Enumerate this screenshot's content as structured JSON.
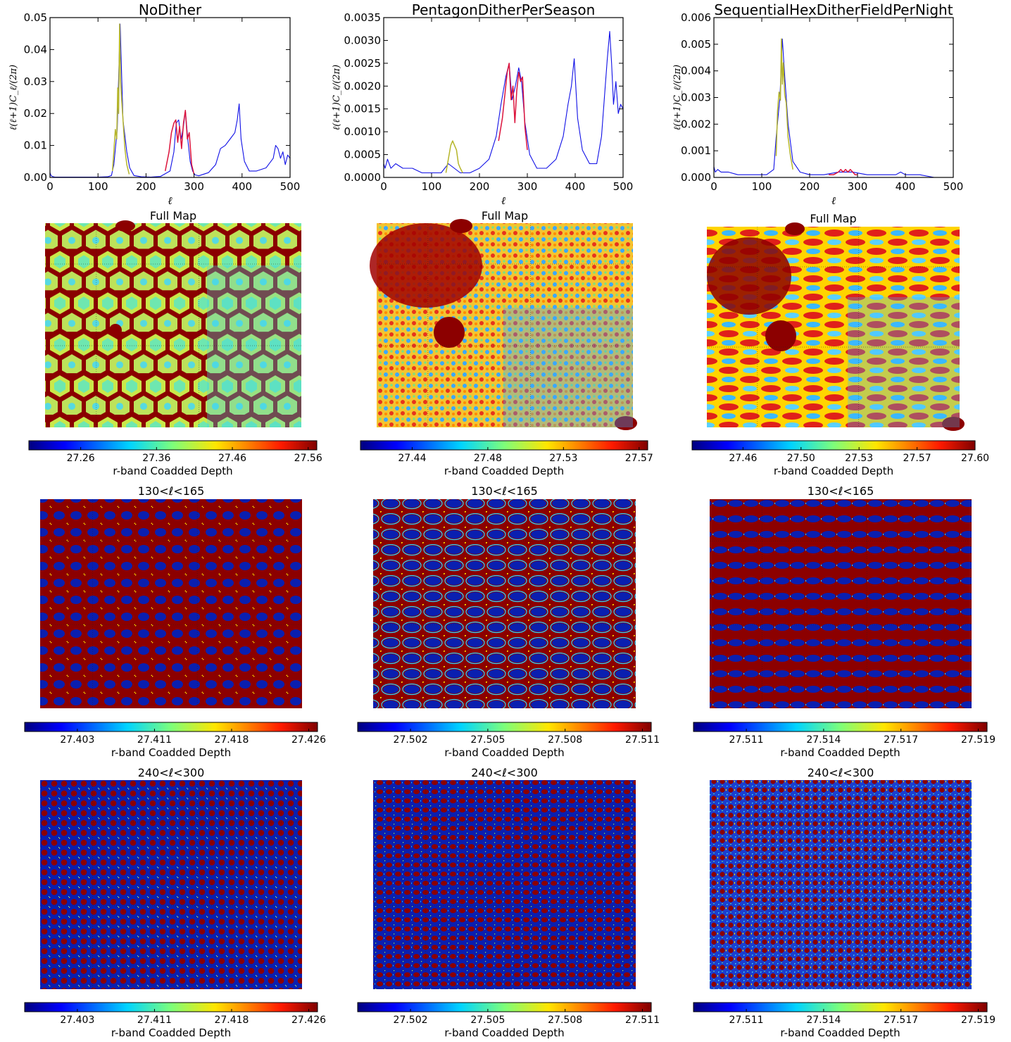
{
  "colors": {
    "low": "#0a1a8f",
    "high": "#960000",
    "blue_line": "#1010e6",
    "olive_line": "#b5b52a",
    "red_line": "#dc143c"
  },
  "chart_data": [
    {
      "type": "line",
      "title": "NoDither",
      "xlabel": "ℓ",
      "ylabel": "ℓ(ℓ+1)C_ℓ/(2π)",
      "xlim": [
        0,
        500
      ],
      "ylim": [
        0,
        0.05
      ],
      "xticks": [
        "0",
        "100",
        "200",
        "300",
        "400",
        "500"
      ],
      "yticks": [
        "0.00",
        "0.01",
        "0.02",
        "0.03",
        "0.04",
        "0.05"
      ],
      "series": [
        {
          "color": "blue_line",
          "x": [
            0,
            2,
            5,
            10,
            30,
            60,
            100,
            120,
            128,
            133,
            140,
            146,
            152,
            160,
            166,
            175,
            190,
            210,
            230,
            250,
            258,
            263,
            268,
            273,
            278,
            282,
            287,
            292,
            297,
            302,
            310,
            330,
            345,
            355,
            365,
            375,
            385,
            390,
            394,
            398,
            405,
            415,
            430,
            450,
            465,
            470,
            475,
            480,
            485,
            490,
            495,
            500
          ],
          "y": [
            0.0015,
            0.0006,
            0.0003,
            0.0001,
            0.0001,
            0.0001,
            0.0001,
            0.0002,
            0.0006,
            0.004,
            0.015,
            0.048,
            0.018,
            0.008,
            0.003,
            0.0006,
            0.0002,
            0.0001,
            0.0003,
            0.002,
            0.008,
            0.017,
            0.018,
            0.012,
            0.016,
            0.021,
            0.012,
            0.005,
            0.002,
            0.0008,
            0.0005,
            0.0015,
            0.004,
            0.009,
            0.01,
            0.012,
            0.014,
            0.018,
            0.023,
            0.012,
            0.005,
            0.002,
            0.002,
            0.003,
            0.006,
            0.01,
            0.009,
            0.006,
            0.008,
            0.004,
            0.007,
            0.006
          ]
        },
        {
          "color": "olive_line",
          "x": [
            130,
            133,
            136,
            139,
            141,
            143,
            145,
            147,
            149,
            152,
            156,
            160,
            165
          ],
          "y": [
            0.002,
            0.008,
            0.015,
            0.012,
            0.028,
            0.02,
            0.048,
            0.03,
            0.025,
            0.018,
            0.009,
            0.004,
            0.001
          ]
        },
        {
          "color": "red_line",
          "x": [
            240,
            248,
            253,
            258,
            262,
            266,
            270,
            274,
            278,
            282,
            286,
            290,
            295,
            300
          ],
          "y": [
            0.002,
            0.008,
            0.014,
            0.017,
            0.018,
            0.011,
            0.016,
            0.009,
            0.017,
            0.021,
            0.012,
            0.014,
            0.004,
            0.001
          ]
        }
      ]
    },
    {
      "type": "line",
      "title": "PentagonDitherPerSeason",
      "xlabel": "ℓ",
      "ylabel": "ℓ(ℓ+1)C_ℓ/(2π)",
      "xlim": [
        0,
        500
      ],
      "ylim": [
        0,
        0.0035
      ],
      "xticks": [
        "0",
        "100",
        "200",
        "300",
        "400",
        "500"
      ],
      "yticks": [
        "0.0000",
        "0.0005",
        "0.0010",
        "0.0015",
        "0.0020",
        "0.0025",
        "0.0030",
        "0.0035"
      ],
      "series": [
        {
          "color": "blue_line",
          "x": [
            0,
            3,
            8,
            15,
            25,
            40,
            60,
            80,
            100,
            120,
            135,
            160,
            180,
            200,
            220,
            235,
            245,
            255,
            262,
            268,
            275,
            282,
            288,
            295,
            305,
            320,
            340,
            360,
            375,
            385,
            392,
            398,
            405,
            415,
            430,
            445,
            455,
            462,
            467,
            472,
            476,
            480,
            485,
            490,
            495,
            500
          ],
          "y": [
            0.0003,
            0.0002,
            0.0004,
            0.0002,
            0.0003,
            0.0002,
            0.0002,
            0.0001,
            0.0001,
            0.0001,
            0.0003,
            0.0001,
            0.0001,
            0.0002,
            0.0004,
            0.0009,
            0.0016,
            0.0022,
            0.0025,
            0.0017,
            0.002,
            0.0024,
            0.0021,
            0.0012,
            0.0005,
            0.0002,
            0.0002,
            0.0004,
            0.0009,
            0.0016,
            0.002,
            0.0026,
            0.0013,
            0.0006,
            0.0003,
            0.0003,
            0.0009,
            0.0019,
            0.0026,
            0.0032,
            0.0025,
            0.0016,
            0.0021,
            0.0014,
            0.0016,
            0.0015
          ]
        },
        {
          "color": "olive_line",
          "x": [
            130,
            135,
            140,
            144,
            148,
            152,
            156,
            160,
            165
          ],
          "y": [
            0.0001,
            0.0004,
            0.0007,
            0.0008,
            0.0007,
            0.0006,
            0.0003,
            0.0002,
            0.0001
          ]
        },
        {
          "color": "red_line",
          "x": [
            240,
            248,
            253,
            258,
            262,
            266,
            270,
            274,
            278,
            282,
            286,
            290,
            295,
            300
          ],
          "y": [
            0.0008,
            0.0013,
            0.0018,
            0.0023,
            0.0025,
            0.0017,
            0.002,
            0.0012,
            0.0019,
            0.0023,
            0.0021,
            0.0022,
            0.0011,
            0.0006
          ]
        }
      ]
    },
    {
      "type": "line",
      "title": "SequentialHexDitherFieldPerNight",
      "xlabel": "ℓ",
      "ylabel": "ℓ(ℓ+1)C_ℓ/(2π)",
      "xlim": [
        0,
        500
      ],
      "ylim": [
        0,
        0.006
      ],
      "xticks": [
        "0",
        "100",
        "200",
        "300",
        "400",
        "500"
      ],
      "yticks": [
        "0.000",
        "0.001",
        "0.002",
        "0.003",
        "0.004",
        "0.005",
        "0.006"
      ],
      "series": [
        {
          "color": "blue_line",
          "x": [
            0,
            3,
            8,
            15,
            30,
            50,
            80,
            110,
            125,
            130,
            138,
            143,
            148,
            155,
            165,
            180,
            200,
            230,
            260,
            290,
            320,
            350,
            380,
            390,
            400,
            430,
            460,
            500
          ],
          "y": [
            0.0004,
            0.0002,
            0.0003,
            0.0002,
            0.0002,
            0.0001,
            0.0001,
            0.0001,
            0.0003,
            0.0015,
            0.003,
            0.0052,
            0.0038,
            0.002,
            0.0006,
            0.0002,
            0.0001,
            0.0001,
            0.0002,
            0.0002,
            0.0001,
            0.0001,
            0.0001,
            0.0002,
            0.0001,
            0.0001,
            0.0,
            0.0
          ]
        },
        {
          "color": "olive_line",
          "x": [
            130,
            133,
            136,
            139,
            141,
            143,
            145,
            148,
            151,
            155,
            160,
            165
          ],
          "y": [
            0.0008,
            0.0025,
            0.0032,
            0.0029,
            0.0052,
            0.0035,
            0.0043,
            0.0031,
            0.0028,
            0.0015,
            0.0008,
            0.0003
          ]
        },
        {
          "color": "red_line",
          "x": [
            240,
            250,
            260,
            265,
            270,
            275,
            280,
            285,
            290,
            295,
            300
          ],
          "y": [
            0.0001,
            0.0001,
            0.0002,
            0.0003,
            0.0002,
            0.0003,
            0.0002,
            0.0003,
            0.0002,
            0.0001,
            0.0001
          ]
        }
      ]
    }
  ],
  "maps": [
    {
      "title": "Full Map",
      "kind": "hex",
      "ticks": [
        "27.26",
        "27.36",
        "27.46",
        "27.56"
      ],
      "label": "r-band Coadded Depth"
    },
    {
      "title": "Full Map",
      "kind": "noise",
      "ticks": [
        "27.44",
        "27.48",
        "27.53",
        "27.57"
      ],
      "label": "r-band Coadded Depth"
    },
    {
      "title": "Full Map",
      "kind": "stripe",
      "ticks": [
        "27.46",
        "27.50",
        "27.53",
        "27.57",
        "27.60"
      ],
      "label": "r-band Coadded Depth"
    },
    {
      "title": "130<ℓ<165",
      "kind": "rings",
      "ticks": [
        "27.403",
        "27.411",
        "27.418",
        "27.426"
      ],
      "label": "r-band Coadded Depth"
    },
    {
      "title": "130<ℓ<165",
      "kind": "rings2",
      "ticks": [
        "27.502",
        "27.505",
        "27.508",
        "27.511"
      ],
      "label": "r-band Coadded Depth"
    },
    {
      "title": "130<ℓ<165",
      "kind": "bands",
      "ticks": [
        "27.511",
        "27.514",
        "27.517",
        "27.519"
      ],
      "label": "r-band Coadded Depth"
    },
    {
      "title": "240<ℓ<300",
      "kind": "fine",
      "ticks": [
        "27.403",
        "27.411",
        "27.418",
        "27.426"
      ],
      "label": "r-band Coadded Depth"
    },
    {
      "title": "240<ℓ<300",
      "kind": "fine2",
      "ticks": [
        "27.502",
        "27.505",
        "27.508",
        "27.511"
      ],
      "label": "r-band Coadded Depth"
    },
    {
      "title": "240<ℓ<300",
      "kind": "fine3",
      "ticks": [
        "27.511",
        "27.514",
        "27.517",
        "27.519"
      ],
      "label": "r-band Coadded Depth"
    }
  ]
}
